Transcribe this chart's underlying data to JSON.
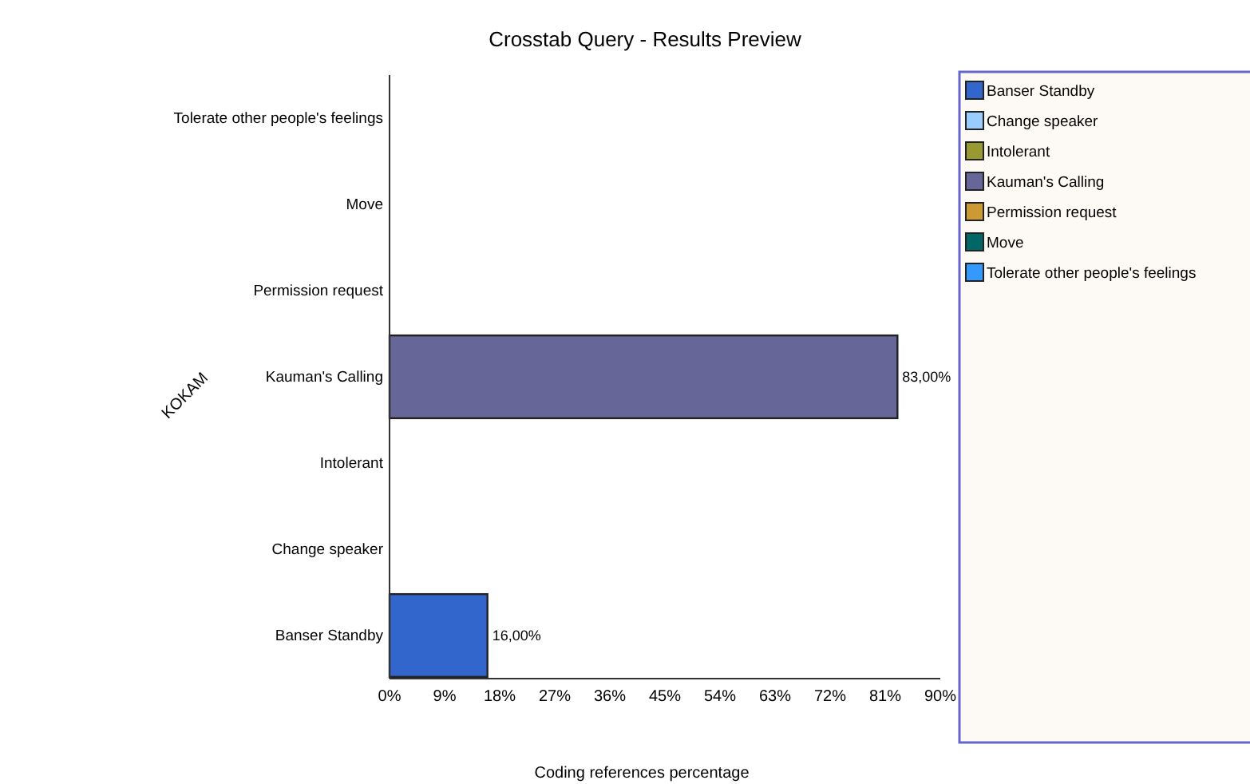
{
  "chart_data": {
    "type": "bar",
    "orientation": "horizontal",
    "title": "Crosstab Query - Results Preview",
    "xlabel": "Coding references percentage",
    "ylabel": "KOKAM",
    "categories": [
      "Tolerate other people's feelings",
      "Move",
      "Permission request",
      "Kauman's Calling",
      "Intolerant",
      "Change speaker",
      "Banser Standby"
    ],
    "series": [
      {
        "name": "Banser Standby",
        "color": "#3366cc",
        "values": [
          null,
          null,
          null,
          null,
          null,
          null,
          16
        ],
        "value_labels": [
          null,
          null,
          null,
          null,
          null,
          null,
          "16,00%"
        ]
      },
      {
        "name": "Change speaker",
        "color": "#99ccff",
        "values": [
          null,
          null,
          null,
          null,
          null,
          0,
          null
        ]
      },
      {
        "name": "Intolerant",
        "color": "#999933",
        "values": [
          null,
          null,
          null,
          null,
          0,
          null,
          null
        ]
      },
      {
        "name": "Kauman's Calling",
        "color": "#666699",
        "values": [
          null,
          null,
          null,
          83,
          null,
          null,
          null
        ],
        "value_labels": [
          null,
          null,
          null,
          "83,00%",
          null,
          null,
          null
        ]
      },
      {
        "name": "Permission request",
        "color": "#cc9933",
        "values": [
          null,
          null,
          0,
          null,
          null,
          null,
          null
        ]
      },
      {
        "name": "Move",
        "color": "#006666",
        "values": [
          null,
          0,
          null,
          null,
          null,
          null,
          null
        ]
      },
      {
        "name": "Tolerate other people's feelings",
        "color": "#3399ff",
        "values": [
          0,
          null,
          null,
          null,
          null,
          null,
          null
        ]
      }
    ],
    "xlim": [
      0,
      90
    ],
    "xticks": [
      {
        "value": 0,
        "label": "0%"
      },
      {
        "value": 9,
        "label": "9%"
      },
      {
        "value": 18,
        "label": "18%"
      },
      {
        "value": 27,
        "label": "27%"
      },
      {
        "value": 36,
        "label": "36%"
      },
      {
        "value": 45,
        "label": "45%"
      },
      {
        "value": 54,
        "label": "54%"
      },
      {
        "value": 63,
        "label": "63%"
      },
      {
        "value": 72,
        "label": "72%"
      },
      {
        "value": 81,
        "label": "81%"
      },
      {
        "value": 90,
        "label": "90%"
      }
    ],
    "legend": "right"
  }
}
